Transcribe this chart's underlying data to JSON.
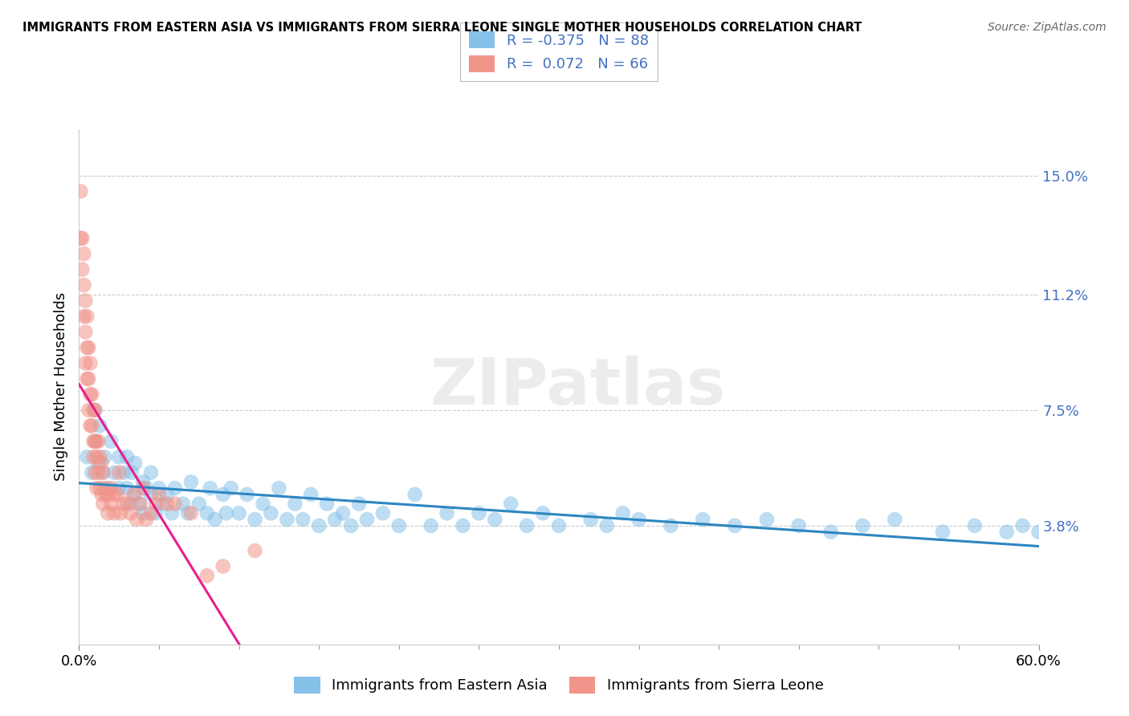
{
  "title": "IMMIGRANTS FROM EASTERN ASIA VS IMMIGRANTS FROM SIERRA LEONE SINGLE MOTHER HOUSEHOLDS CORRELATION CHART",
  "source": "Source: ZipAtlas.com",
  "ylabel": "Single Mother Households",
  "xlim": [
    0.0,
    0.6
  ],
  "ylim": [
    0.0,
    0.165
  ],
  "yticks": [
    0.038,
    0.075,
    0.112,
    0.15
  ],
  "ytick_labels": [
    "3.8%",
    "7.5%",
    "11.2%",
    "15.0%"
  ],
  "xtick_labels": [
    "0.0%",
    "60.0%"
  ],
  "blue_R": -0.375,
  "blue_N": 88,
  "pink_R": 0.072,
  "pink_N": 66,
  "blue_color": "#85C1E9",
  "pink_color": "#F1948A",
  "blue_line_color": "#2E86C1",
  "pink_line_color": "#E91E8C",
  "watermark": "ZIPatlas",
  "legend_label_blue": "Immigrants from Eastern Asia",
  "legend_label_pink": "Immigrants from Sierra Leone",
  "blue_scatter_x": [
    0.005,
    0.008,
    0.01,
    0.01,
    0.012,
    0.013,
    0.015,
    0.016,
    0.018,
    0.02,
    0.022,
    0.025,
    0.025,
    0.028,
    0.03,
    0.03,
    0.032,
    0.033,
    0.035,
    0.035,
    0.038,
    0.04,
    0.04,
    0.042,
    0.045,
    0.045,
    0.048,
    0.05,
    0.052,
    0.055,
    0.058,
    0.06,
    0.065,
    0.068,
    0.07,
    0.075,
    0.08,
    0.082,
    0.085,
    0.09,
    0.092,
    0.095,
    0.1,
    0.105,
    0.11,
    0.115,
    0.12,
    0.125,
    0.13,
    0.135,
    0.14,
    0.145,
    0.15,
    0.155,
    0.16,
    0.165,
    0.17,
    0.175,
    0.18,
    0.19,
    0.2,
    0.21,
    0.22,
    0.23,
    0.24,
    0.25,
    0.26,
    0.27,
    0.28,
    0.29,
    0.3,
    0.32,
    0.33,
    0.34,
    0.35,
    0.37,
    0.39,
    0.41,
    0.43,
    0.45,
    0.47,
    0.49,
    0.51,
    0.54,
    0.56,
    0.58,
    0.59,
    0.6
  ],
  "blue_scatter_y": [
    0.06,
    0.055,
    0.075,
    0.065,
    0.058,
    0.07,
    0.055,
    0.06,
    0.05,
    0.065,
    0.055,
    0.06,
    0.05,
    0.055,
    0.05,
    0.06,
    0.045,
    0.055,
    0.048,
    0.058,
    0.045,
    0.052,
    0.042,
    0.05,
    0.048,
    0.055,
    0.042,
    0.05,
    0.045,
    0.048,
    0.042,
    0.05,
    0.045,
    0.042,
    0.052,
    0.045,
    0.042,
    0.05,
    0.04,
    0.048,
    0.042,
    0.05,
    0.042,
    0.048,
    0.04,
    0.045,
    0.042,
    0.05,
    0.04,
    0.045,
    0.04,
    0.048,
    0.038,
    0.045,
    0.04,
    0.042,
    0.038,
    0.045,
    0.04,
    0.042,
    0.038,
    0.048,
    0.038,
    0.042,
    0.038,
    0.042,
    0.04,
    0.045,
    0.038,
    0.042,
    0.038,
    0.04,
    0.038,
    0.042,
    0.04,
    0.038,
    0.04,
    0.038,
    0.04,
    0.038,
    0.036,
    0.038,
    0.04,
    0.036,
    0.038,
    0.036,
    0.038,
    0.036
  ],
  "pink_scatter_x": [
    0.001,
    0.001,
    0.002,
    0.002,
    0.003,
    0.003,
    0.003,
    0.004,
    0.004,
    0.004,
    0.005,
    0.005,
    0.005,
    0.006,
    0.006,
    0.006,
    0.007,
    0.007,
    0.007,
    0.008,
    0.008,
    0.009,
    0.009,
    0.009,
    0.01,
    0.01,
    0.01,
    0.011,
    0.011,
    0.011,
    0.012,
    0.012,
    0.013,
    0.013,
    0.014,
    0.014,
    0.015,
    0.015,
    0.016,
    0.017,
    0.018,
    0.018,
    0.02,
    0.02,
    0.022,
    0.022,
    0.024,
    0.025,
    0.026,
    0.028,
    0.03,
    0.032,
    0.034,
    0.036,
    0.038,
    0.04,
    0.042,
    0.045,
    0.048,
    0.05,
    0.055,
    0.06,
    0.07,
    0.08,
    0.09,
    0.11
  ],
  "pink_scatter_y": [
    0.145,
    0.13,
    0.13,
    0.12,
    0.125,
    0.115,
    0.105,
    0.11,
    0.1,
    0.09,
    0.105,
    0.095,
    0.085,
    0.095,
    0.085,
    0.075,
    0.09,
    0.08,
    0.07,
    0.08,
    0.07,
    0.075,
    0.065,
    0.06,
    0.075,
    0.065,
    0.055,
    0.065,
    0.06,
    0.05,
    0.065,
    0.055,
    0.06,
    0.05,
    0.058,
    0.048,
    0.055,
    0.045,
    0.05,
    0.048,
    0.048,
    0.042,
    0.05,
    0.045,
    0.048,
    0.042,
    0.048,
    0.055,
    0.042,
    0.045,
    0.045,
    0.042,
    0.048,
    0.04,
    0.045,
    0.05,
    0.04,
    0.042,
    0.045,
    0.048,
    0.045,
    0.045,
    0.042,
    0.022,
    0.025,
    0.03
  ]
}
